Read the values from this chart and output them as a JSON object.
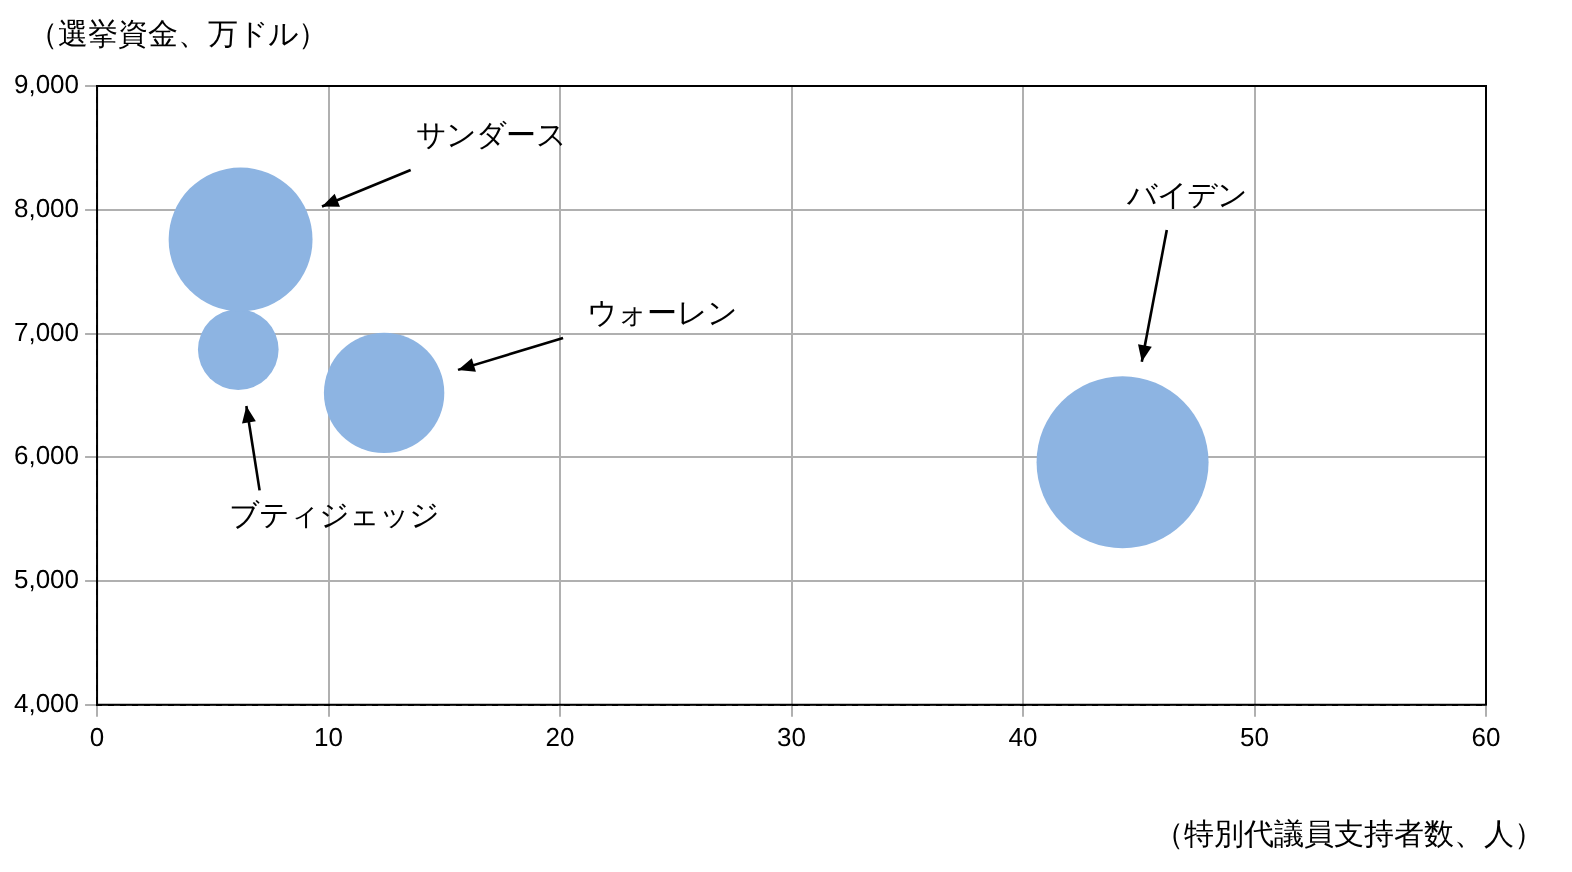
{
  "chart_data": {
    "type": "bubble",
    "xlabel": "（特別代議員支持者数、人）",
    "ylabel": "（選挙資金、万ドル）",
    "xlim": [
      0,
      60
    ],
    "xticks": [
      0,
      10,
      20,
      30,
      40,
      50,
      60
    ],
    "ylim": [
      4000,
      9000
    ],
    "yticks": [
      {
        "value": 4000,
        "label": "4,000"
      },
      {
        "value": 5000,
        "label": "5,000"
      },
      {
        "value": 6000,
        "label": "6,000"
      },
      {
        "value": 7000,
        "label": "7,000"
      },
      {
        "value": 8000,
        "label": "8,000"
      },
      {
        "value": 9000,
        "label": "9,000"
      }
    ],
    "grid": true,
    "legend": false,
    "annotations": [
      "サンダース",
      "ブティジェッジ",
      "ウォーレン",
      "バイデン"
    ],
    "series": [
      {
        "color": "#8db4e2",
        "x": [
          6.2
        ],
        "values": [
          7760
        ],
        "sizes": [
          0.7
        ]
      },
      {
        "color": "#8db4e2",
        "x": [
          6.1
        ],
        "values": [
          6870
        ],
        "sizes": [
          0.22
        ]
      },
      {
        "color": "#8db4e2",
        "x": [
          12.4
        ],
        "values": [
          6520
        ],
        "sizes": [
          0.49
        ]
      },
      {
        "color": "#8db4e2",
        "x": [
          44.3
        ],
        "values": [
          5960
        ],
        "sizes": [
          1
        ]
      }
    ]
  }
}
